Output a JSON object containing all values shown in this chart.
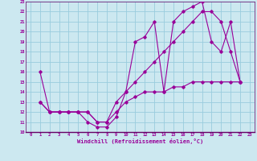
{
  "xlabel": "Windchill (Refroidissement éolien,°C)",
  "bg_color": "#cce8f0",
  "grid_color": "#99ccdd",
  "line_color": "#990099",
  "xlim": [
    -0.5,
    23.5
  ],
  "ylim": [
    10,
    23
  ],
  "xticks": [
    0,
    1,
    2,
    3,
    4,
    5,
    6,
    7,
    8,
    9,
    10,
    11,
    12,
    13,
    14,
    15,
    16,
    17,
    18,
    19,
    20,
    21,
    22,
    23
  ],
  "yticks": [
    10,
    11,
    12,
    13,
    14,
    15,
    16,
    17,
    18,
    19,
    20,
    21,
    22,
    23
  ],
  "lines": [
    {
      "x": [
        1,
        2,
        3,
        4,
        5,
        6,
        7,
        8,
        9,
        10,
        11,
        12,
        13,
        14,
        15,
        16,
        17,
        18,
        19,
        20,
        21,
        22
      ],
      "y": [
        16,
        12,
        12,
        12,
        12,
        11,
        10.5,
        10.5,
        11.5,
        14,
        19,
        19.5,
        21,
        14,
        21,
        22,
        22.5,
        23,
        19,
        18,
        21,
        15
      ]
    },
    {
      "x": [
        1,
        2,
        3,
        4,
        5,
        6,
        7,
        8,
        9,
        10,
        11,
        12,
        13,
        14,
        15,
        16,
        17,
        18,
        19,
        20,
        21,
        22
      ],
      "y": [
        13,
        12,
        12,
        12,
        12,
        12,
        11,
        11,
        13,
        14,
        15,
        16,
        17,
        18,
        19,
        20,
        21,
        22,
        22,
        21,
        18,
        15
      ]
    },
    {
      "x": [
        1,
        2,
        3,
        4,
        5,
        6,
        7,
        8,
        9,
        10,
        11,
        12,
        13,
        14,
        15,
        16,
        17,
        18,
        19,
        20,
        21,
        22
      ],
      "y": [
        13,
        12,
        12,
        12,
        12,
        12,
        11,
        11,
        12,
        13,
        13.5,
        14,
        14,
        14,
        14.5,
        14.5,
        15,
        15,
        15,
        15,
        15,
        15
      ]
    }
  ]
}
